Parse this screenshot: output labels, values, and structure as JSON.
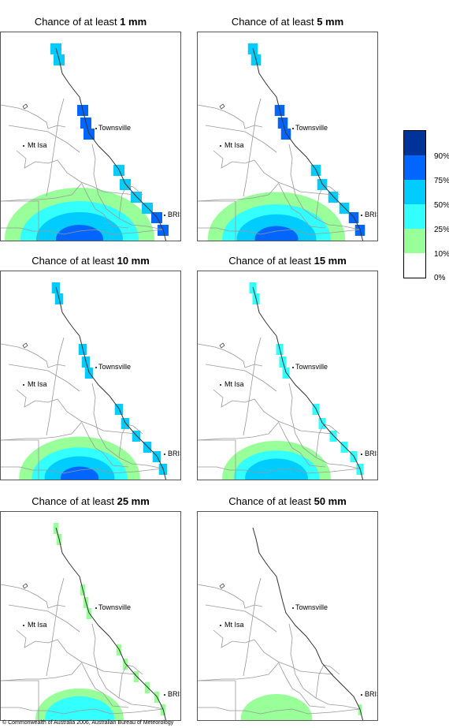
{
  "panels": [
    {
      "title_prefix": "Chance of at least ",
      "amount": "1 mm",
      "intensity": 1.0
    },
    {
      "title_prefix": "Chance of at least ",
      "amount": "5 mm",
      "intensity": 0.85
    },
    {
      "title_prefix": "Chance of at least ",
      "amount": "10 mm",
      "intensity": 0.65
    },
    {
      "title_prefix": "Chance of at least ",
      "amount": "15 mm",
      "intensity": 0.5
    },
    {
      "title_prefix": "Chance of at least ",
      "amount": "25 mm",
      "intensity": 0.25
    },
    {
      "title_prefix": "Chance of at least ",
      "amount": "50 mm",
      "intensity": 0.05
    }
  ],
  "places": {
    "townsville": "Townsville",
    "mt_isa": "Mt Isa",
    "bris": "BRIS"
  },
  "legend": {
    "labels": [
      "90%",
      "75%",
      "50%",
      "25%",
      "10%",
      "0%"
    ],
    "colors": [
      "#003399",
      "#0066ff",
      "#00ccff",
      "#33ffff",
      "#99ff99",
      "#ffffff"
    ]
  },
  "copyright": "© Commonwealth of Australia 2006, Australian Bureau of Meteorology"
}
